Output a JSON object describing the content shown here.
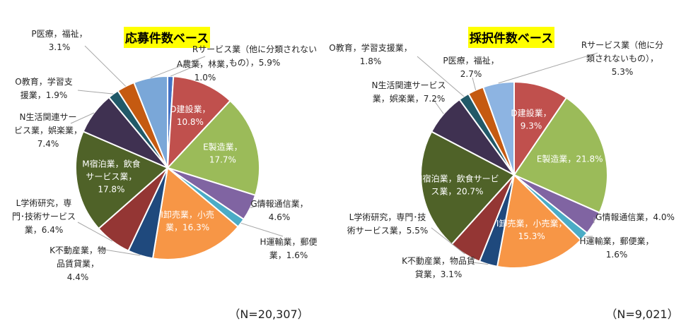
{
  "chart_data": [
    {
      "type": "pie",
      "title": "応募件数ベース",
      "footnote": "（N=20,307）",
      "unit": "%",
      "slices": [
        {
          "name": "A農業，林業",
          "value": 1.0,
          "label_lines": [
            "A農業，林業，",
            "1.0%"
          ],
          "inside": false,
          "color": "#4472c4"
        },
        {
          "name": "D建設業",
          "value": 10.8,
          "label_lines": [
            "D建設業，",
            "10.8%"
          ],
          "inside": true,
          "color": "#c0504d"
        },
        {
          "name": "E製造業",
          "value": 17.7,
          "label_lines": [
            "E製造業，",
            "17.7%"
          ],
          "inside": true,
          "color": "#9bbb59"
        },
        {
          "name": "G情報通信業",
          "value": 4.6,
          "label_lines": [
            "G情報通信業，",
            "4.6%"
          ],
          "inside": false,
          "color": "#8064a2"
        },
        {
          "name": "H運輸業，郵便業",
          "value": 1.6,
          "label_lines": [
            "H運輸業，郵便",
            "業，1.6%"
          ],
          "inside": false,
          "color": "#4bacc6"
        },
        {
          "name": "I卸売業，小売業",
          "value": 16.3,
          "label_lines": [
            "I卸売業，小売",
            "業，16.3%"
          ],
          "inside": true,
          "color": "#f79646"
        },
        {
          "name": "K不動産業，物品賃貸業",
          "value": 4.4,
          "label_lines": [
            "K不動産業，物",
            "品賃貸業，",
            "4.4%"
          ],
          "inside": false,
          "color": "#1f497d"
        },
        {
          "name": "L学術研究，専門・技術サービス業",
          "value": 6.4,
          "label_lines": [
            "L学術研究，専",
            "門･技術サービス",
            "業，6.4%"
          ],
          "inside": false,
          "color": "#943634"
        },
        {
          "name": "M宿泊業，飲食サービス業",
          "value": 17.8,
          "label_lines": [
            "M宿泊業，飲食",
            "サービス業，",
            "17.8%"
          ],
          "inside": true,
          "color": "#4f6228"
        },
        {
          "name": "N生活関連サービス業，娯楽業",
          "value": 7.4,
          "label_lines": [
            "N生活関連サー",
            "ビス業，娯楽業，",
            "7.4%"
          ],
          "inside": false,
          "color": "#3f3151"
        },
        {
          "name": "O教育，学習支援業",
          "value": 1.9,
          "label_lines": [
            "O教育，学習支",
            "援業，1.9%"
          ],
          "inside": false,
          "color": "#215968"
        },
        {
          "name": "P医療，福祉",
          "value": 3.1,
          "label_lines": [
            "P医療，福祉，",
            "3.1%"
          ],
          "inside": false,
          "color": "#c55a11"
        },
        {
          "name": "Rサービス業（他に分類されないもの）",
          "value": 5.9,
          "label_lines": [
            "Rサービス業（他に分類されない",
            "もの），5.9%"
          ],
          "inside": false,
          "color": "#7aa7d8"
        }
      ]
    },
    {
      "type": "pie",
      "title": "採択件数ベース",
      "footnote": "（N=9,021）",
      "unit": "%",
      "slices": [
        {
          "name": "D建設業",
          "value": 9.3,
          "label_lines": [
            "D建設業，",
            "9.3%"
          ],
          "inside": true,
          "color": "#c0504d"
        },
        {
          "name": "E製造業",
          "value": 21.8,
          "label_lines": [
            "E製造業，21.8%"
          ],
          "inside": true,
          "color": "#9bbb59"
        },
        {
          "name": "G情報通信業",
          "value": 4.0,
          "label_lines": [
            "G情報通信業，4.0%"
          ],
          "inside": false,
          "color": "#8064a2"
        },
        {
          "name": "H運輸業，郵便業",
          "value": 1.6,
          "label_lines": [
            "H運輸業，郵便業，",
            "1.6%"
          ],
          "inside": false,
          "color": "#4bacc6"
        },
        {
          "name": "I卸売業，小売業",
          "value": 15.3,
          "label_lines": [
            "I卸売業，小売業，",
            "15.3%"
          ],
          "inside": true,
          "color": "#f79646"
        },
        {
          "name": "K不動産業，物品賃貸業",
          "value": 3.1,
          "label_lines": [
            "K不動産業，物品賃",
            "貸業，3.1%"
          ],
          "inside": false,
          "color": "#1f497d"
        },
        {
          "name": "L学術研究，専門・技術サービス業",
          "value": 5.5,
          "label_lines": [
            "L学術研究，専門･技",
            "術サービス業，5.5%"
          ],
          "inside": false,
          "color": "#943634"
        },
        {
          "name": "M宿泊業，飲食サービス業",
          "value": 20.7,
          "label_lines": [
            "M宿泊業，飲食サービ",
            "ス業，20.7%"
          ],
          "inside": true,
          "color": "#4f6228"
        },
        {
          "name": "N生活関連サービス業，娯楽業",
          "value": 7.2,
          "label_lines": [
            "N生活関連サービス",
            "業，娯楽業，7.2%"
          ],
          "inside": false,
          "color": "#3f3151"
        },
        {
          "name": "O教育，学習支援業",
          "value": 1.8,
          "label_lines": [
            "O教育，学習支援業，",
            "1.8%"
          ],
          "inside": false,
          "color": "#215968"
        },
        {
          "name": "P医療，福祉",
          "value": 2.7,
          "label_lines": [
            "P医療，福祉，",
            "2.7%"
          ],
          "inside": false,
          "color": "#c55a11"
        },
        {
          "name": "Rサービス業（他に分類されないもの）",
          "value": 5.3,
          "label_lines": [
            "Rサービス業（他に分",
            "類されないもの），",
            "5.3%"
          ],
          "inside": false,
          "color": "#8db4e2"
        }
      ]
    }
  ]
}
